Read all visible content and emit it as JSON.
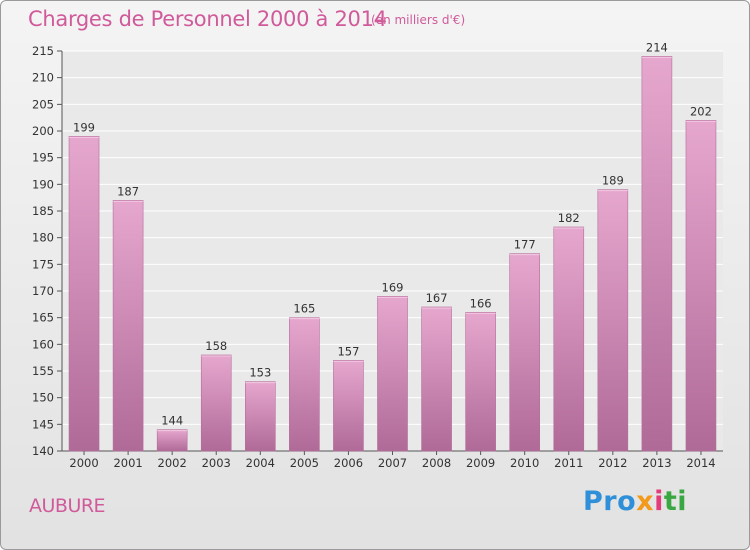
{
  "title": "Charges de Personnel 2000 à 2014",
  "subtitle": "(en milliers d'€)",
  "commune": "AUBURE",
  "logo": {
    "p1": "Pro",
    "p2": "x",
    "p3": "i",
    "p4": "ti"
  },
  "chart_data": {
    "type": "bar",
    "title": "Charges de Personnel 2000 à 2014",
    "subtitle": "(en milliers d'€)",
    "categories": [
      "2000",
      "2001",
      "2002",
      "2003",
      "2004",
      "2005",
      "2006",
      "2007",
      "2008",
      "2009",
      "2010",
      "2011",
      "2012",
      "2013",
      "2014"
    ],
    "values": [
      199,
      187,
      144,
      158,
      153,
      165,
      157,
      169,
      167,
      166,
      177,
      182,
      189,
      214,
      202
    ],
    "ylim": [
      140,
      215
    ],
    "yticks": [
      140,
      145,
      150,
      155,
      160,
      165,
      170,
      175,
      180,
      185,
      190,
      195,
      200,
      205,
      210,
      215
    ],
    "grid": true,
    "bar_color": "#cc77aa"
  }
}
